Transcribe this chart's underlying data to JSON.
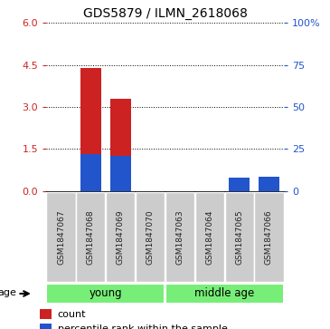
{
  "title": "GDS5879 / ILMN_2618068",
  "samples": [
    "GSM1847067",
    "GSM1847068",
    "GSM1847069",
    "GSM1847070",
    "GSM1847063",
    "GSM1847064",
    "GSM1847065",
    "GSM1847066"
  ],
  "count_values": [
    0.0,
    4.4,
    3.3,
    0.0,
    0.0,
    0.0,
    0.2,
    0.25
  ],
  "percentile_values": [
    0.0,
    22.0,
    21.0,
    0.0,
    0.0,
    0.0,
    8.0,
    8.5
  ],
  "left_ylim": [
    0,
    6
  ],
  "left_yticks": [
    0,
    1.5,
    3,
    4.5,
    6
  ],
  "right_ylim": [
    0,
    100
  ],
  "right_yticks": [
    0,
    25,
    50,
    75,
    100
  ],
  "right_yticklabels": [
    "0",
    "25",
    "50",
    "75",
    "100%"
  ],
  "bar_color_red": "#cc2222",
  "bar_color_blue": "#2255cc",
  "bar_width": 0.7,
  "groups_info": [
    {
      "label": "young",
      "start": 0,
      "end": 3,
      "color": "#77ee77"
    },
    {
      "label": "middle age",
      "start": 4,
      "end": 7,
      "color": "#77ee77"
    }
  ],
  "age_label": "age",
  "legend_count": "count",
  "legend_percentile": "percentile rank within the sample",
  "left_tick_color": "#cc2222",
  "right_tick_color": "#2255cc",
  "grid_color": "black",
  "plot_bg_color": "#ffffff",
  "sample_box_color": "#cccccc"
}
